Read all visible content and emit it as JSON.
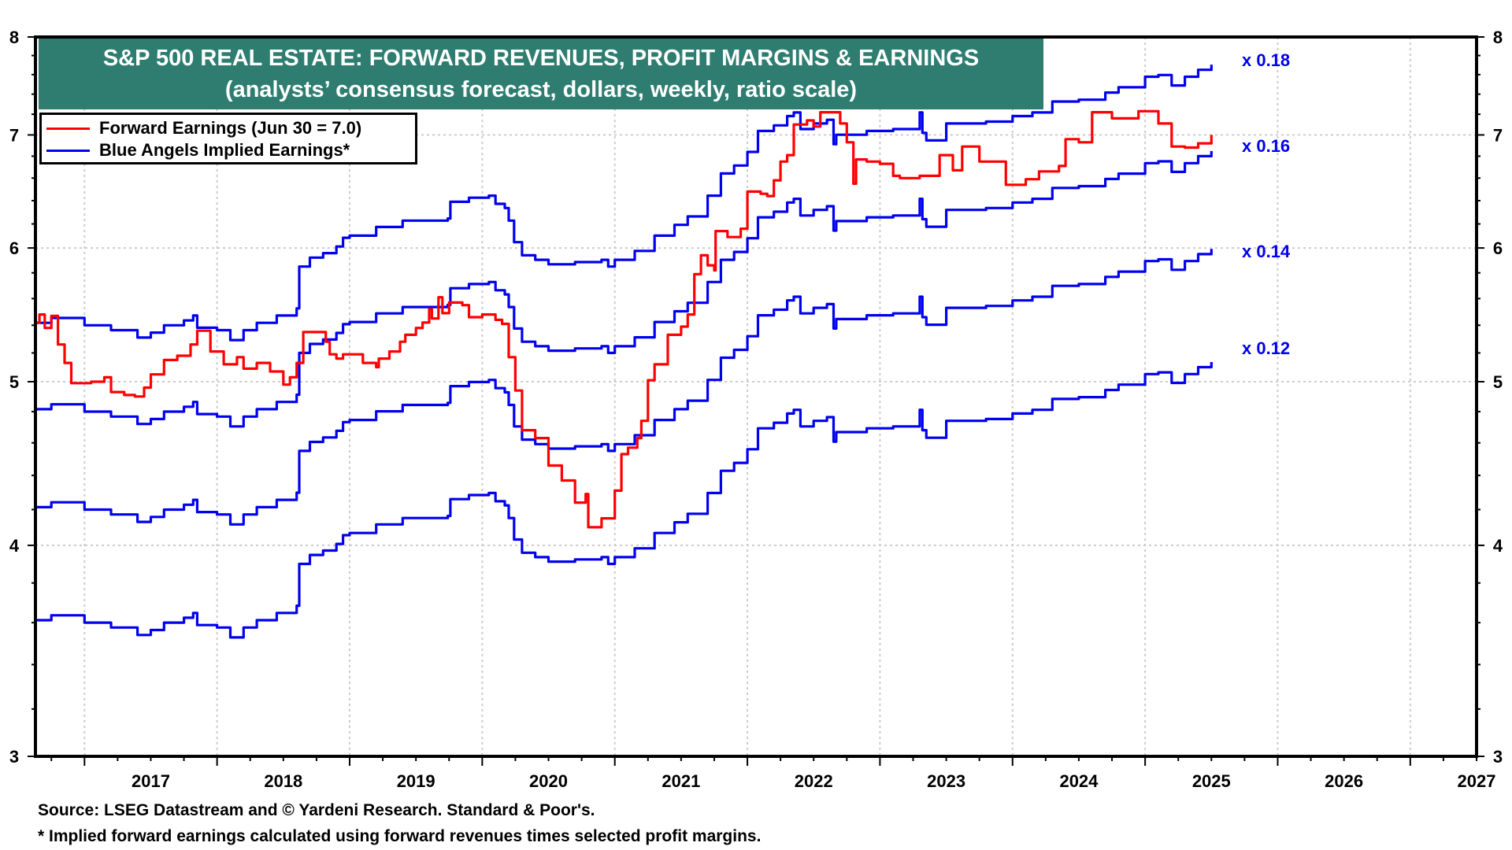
{
  "title": {
    "line1": "S&P 500 REAL ESTATE: FORWARD REVENUES, PROFIT MARGINS & EARNINGS",
    "line2": "(analysts’ consensus forecast, dollars, weekly, ratio scale)"
  },
  "legend": [
    {
      "label": "Forward Earnings (Jun 30 = 7.0)",
      "color": "#ff0000"
    },
    {
      "label": "Blue Angels Implied Earnings*",
      "color": "#0000ee"
    }
  ],
  "footer": {
    "source": "Source: LSEG Datastream and © Yardeni Research. Standard & Poor's.",
    "note": "* Implied forward earnings calculated using forward revenues times selected profit margins."
  },
  "chart_data": {
    "type": "line",
    "title": "S&P 500 REAL ESTATE: FORWARD REVENUES, PROFIT MARGINS & EARNINGS",
    "subtitle": "(analysts’ consensus forecast, dollars, weekly, ratio scale)",
    "y_scale": "log",
    "ylim": [
      3,
      8
    ],
    "y_ticks": [
      3,
      4,
      5,
      6,
      7,
      8
    ],
    "y_tick_labels": [
      "3",
      "4",
      "5",
      "6",
      "7",
      "8"
    ],
    "xlim": [
      2016.63,
      2027.5
    ],
    "x_tick_labels": [
      "2017",
      "2018",
      "2019",
      "2020",
      "2021",
      "2022",
      "2023",
      "2024",
      "2025",
      "2026",
      "2027"
    ],
    "x_tick_years": [
      2017,
      2018,
      2019,
      2020,
      2021,
      2022,
      2023,
      2024,
      2025,
      2026,
      2027
    ],
    "grid": true,
    "legend_position": "top-left",
    "colors": {
      "forward_earnings": "#ff0000",
      "implied": "#0000ee"
    },
    "implied_margins": [
      {
        "margin": 0.18,
        "label": "x 0.18"
      },
      {
        "margin": 0.16,
        "label": "x 0.16"
      },
      {
        "margin": 0.14,
        "label": "x 0.14"
      },
      {
        "margin": 0.12,
        "label": "x 0.12"
      }
    ],
    "forward_revenues": {
      "x": [
        2016.63,
        2016.75,
        2016.85,
        2017.0,
        2017.2,
        2017.4,
        2017.5,
        2017.6,
        2017.75,
        2017.82,
        2017.85,
        2018.0,
        2018.1,
        2018.2,
        2018.3,
        2018.45,
        2018.6,
        2018.62,
        2018.7,
        2018.8,
        2018.9,
        2018.95,
        2019.0,
        2019.2,
        2019.4,
        2019.6,
        2019.74,
        2019.76,
        2019.9,
        2020.05,
        2020.1,
        2020.17,
        2020.2,
        2020.24,
        2020.3,
        2020.4,
        2020.5,
        2020.7,
        2020.9,
        2020.95,
        2021.0,
        2021.15,
        2021.3,
        2021.45,
        2021.55,
        2021.7,
        2021.8,
        2021.9,
        2022.0,
        2022.08,
        2022.2,
        2022.3,
        2022.35,
        2022.4,
        2022.5,
        2022.6,
        2022.65,
        2022.67,
        2022.9,
        2023.1,
        2023.3,
        2023.32,
        2023.35,
        2023.5,
        2023.8,
        2024.0,
        2024.15,
        2024.3,
        2024.5,
        2024.7,
        2024.8,
        2025.0,
        2025.1,
        2025.2,
        2025.3,
        2025.4,
        2025.5
      ],
      "values": [
        30.1,
        30.3,
        30.3,
        30.0,
        29.8,
        29.5,
        29.7,
        30.0,
        30.2,
        30.4,
        29.9,
        29.8,
        29.4,
        29.8,
        30.1,
        30.4,
        30.7,
        32.5,
        32.9,
        33.1,
        33.4,
        33.8,
        33.9,
        34.3,
        34.6,
        34.6,
        34.7,
        35.5,
        35.7,
        35.8,
        35.4,
        35.2,
        34.6,
        33.6,
        33.0,
        32.8,
        32.6,
        32.7,
        32.8,
        32.5,
        32.8,
        33.2,
        33.9,
        34.4,
        34.8,
        35.8,
        36.9,
        37.3,
        38.0,
        39.1,
        39.4,
        39.9,
        40.1,
        39.2,
        39.5,
        39.7,
        38.4,
        38.9,
        39.1,
        39.2,
        40.1,
        39.0,
        38.6,
        39.5,
        39.6,
        39.9,
        40.1,
        40.7,
        40.8,
        41.2,
        41.5,
        42.1,
        42.2,
        41.6,
        42.1,
        42.5,
        42.8
      ]
    },
    "forward_earnings": {
      "name": "Forward Earnings (Jun 30 = 7.0)",
      "x": [
        2016.63,
        2016.66,
        2016.7,
        2016.75,
        2016.8,
        2016.85,
        2016.9,
        2017.0,
        2017.05,
        2017.15,
        2017.2,
        2017.3,
        2017.38,
        2017.45,
        2017.5,
        2017.6,
        2017.7,
        2017.8,
        2017.85,
        2017.95,
        2018.05,
        2018.15,
        2018.2,
        2018.3,
        2018.4,
        2018.5,
        2018.55,
        2018.6,
        2018.65,
        2018.78,
        2018.82,
        2018.85,
        2018.9,
        2018.95,
        2019.05,
        2019.1,
        2019.2,
        2019.22,
        2019.3,
        2019.38,
        2019.42,
        2019.5,
        2019.55,
        2019.6,
        2019.62,
        2019.67,
        2019.7,
        2019.75,
        2019.85,
        2019.9,
        2020.0,
        2020.1,
        2020.15,
        2020.2,
        2020.25,
        2020.3,
        2020.4,
        2020.5,
        2020.6,
        2020.7,
        2020.78,
        2020.8,
        2020.9,
        2021.0,
        2021.05,
        2021.1,
        2021.17,
        2021.2,
        2021.25,
        2021.3,
        2021.4,
        2021.5,
        2021.55,
        2021.6,
        2021.65,
        2021.7,
        2021.75,
        2021.76,
        2021.85,
        2021.95,
        2022.0,
        2022.1,
        2022.15,
        2022.2,
        2022.25,
        2022.3,
        2022.35,
        2022.45,
        2022.5,
        2022.55,
        2022.65,
        2022.7,
        2022.75,
        2022.8,
        2022.82,
        2022.9,
        2023.0,
        2023.1,
        2023.15,
        2023.3,
        2023.45,
        2023.55,
        2023.62,
        2023.75,
        2023.95,
        2024.1,
        2024.2,
        2024.35,
        2024.4,
        2024.5,
        2024.6,
        2024.75,
        2024.95,
        2025.1,
        2025.2,
        2025.3,
        2025.4,
        2025.5
      ],
      "values": [
        5.42,
        5.48,
        5.38,
        5.47,
        5.26,
        5.13,
        4.99,
        4.99,
        5.0,
        5.03,
        4.93,
        4.91,
        4.9,
        4.96,
        5.05,
        5.15,
        5.18,
        5.26,
        5.36,
        5.21,
        5.12,
        5.17,
        5.09,
        5.13,
        5.07,
        4.98,
        5.03,
        5.13,
        5.35,
        5.35,
        5.28,
        5.19,
        5.16,
        5.19,
        5.19,
        5.13,
        5.1,
        5.16,
        5.21,
        5.28,
        5.33,
        5.38,
        5.42,
        5.52,
        5.45,
        5.61,
        5.49,
        5.57,
        5.55,
        5.46,
        5.48,
        5.44,
        5.41,
        5.17,
        4.94,
        4.68,
        4.63,
        4.46,
        4.37,
        4.24,
        4.29,
        4.1,
        4.15,
        4.31,
        4.53,
        4.57,
        4.63,
        4.74,
        5.01,
        5.12,
        5.33,
        5.39,
        5.48,
        5.79,
        5.94,
        5.86,
        5.82,
        6.14,
        6.09,
        6.16,
        6.48,
        6.46,
        6.44,
        6.58,
        6.75,
        6.81,
        7.1,
        7.14,
        7.08,
        7.22,
        7.22,
        7.11,
        6.93,
        6.55,
        6.77,
        6.75,
        6.73,
        6.62,
        6.6,
        6.62,
        6.81,
        6.67,
        6.89,
        6.75,
        6.54,
        6.59,
        6.66,
        6.71,
        6.96,
        6.93,
        7.22,
        7.16,
        7.23,
        7.11,
        6.89,
        6.88,
        6.92,
        7.0
      ]
    }
  }
}
